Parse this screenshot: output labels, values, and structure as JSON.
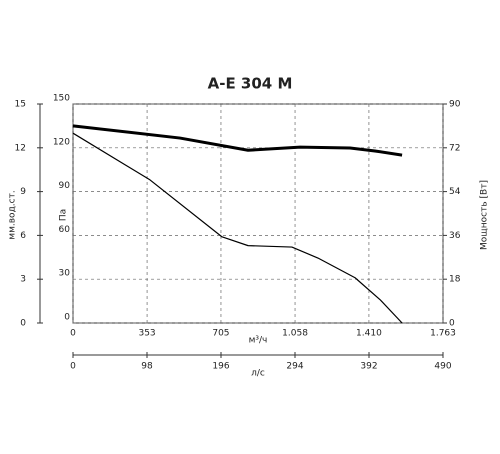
{
  "chart_data": {
    "type": "line",
    "title": "A-E 304 M",
    "x": [
      0,
      367,
      710,
      834,
      1043,
      1167,
      1344,
      1463,
      1568
    ],
    "series": [
      {
        "color": "#000000",
        "width": 1.2,
        "values": [
          130,
          98,
          59,
          53,
          52,
          44.5,
          31,
          16,
          0
        ]
      },
      {
        "color": "#000000",
        "width": 3,
        "axis": "y2",
        "x": [
          0,
          510,
          834,
          1082,
          1320,
          1439,
          1568
        ],
        "values": [
          81,
          76,
          71,
          72.3,
          71.9,
          70.7,
          69
        ]
      }
    ],
    "xlim": [
      0,
      1763
    ],
    "xticks": [
      0,
      353,
      705,
      {
        "value": 1058,
        "label": "1.058"
      },
      {
        "value": 1410,
        "label": "1.410"
      },
      {
        "value": 1763,
        "label": "1.763"
      }
    ],
    "xlabel": "м³/ч",
    "x2lim": [
      0,
      490
    ],
    "x2ticks": [
      0,
      98,
      196,
      294,
      392,
      490
    ],
    "x2label": "л/с",
    "ylim": [
      0,
      150
    ],
    "yticks": [
      0,
      30,
      60,
      90,
      120,
      150
    ],
    "ylabel": "Па",
    "y3lim": [
      0,
      15
    ],
    "y3ticks": [
      0,
      3,
      6,
      9,
      12,
      15
    ],
    "y3label": "мм.вод.ст.",
    "y2lim": [
      0,
      90
    ],
    "y2ticks": [
      0,
      18,
      36,
      54,
      72,
      90
    ],
    "y2label": "Мощность [Вт]",
    "grid": true
  }
}
